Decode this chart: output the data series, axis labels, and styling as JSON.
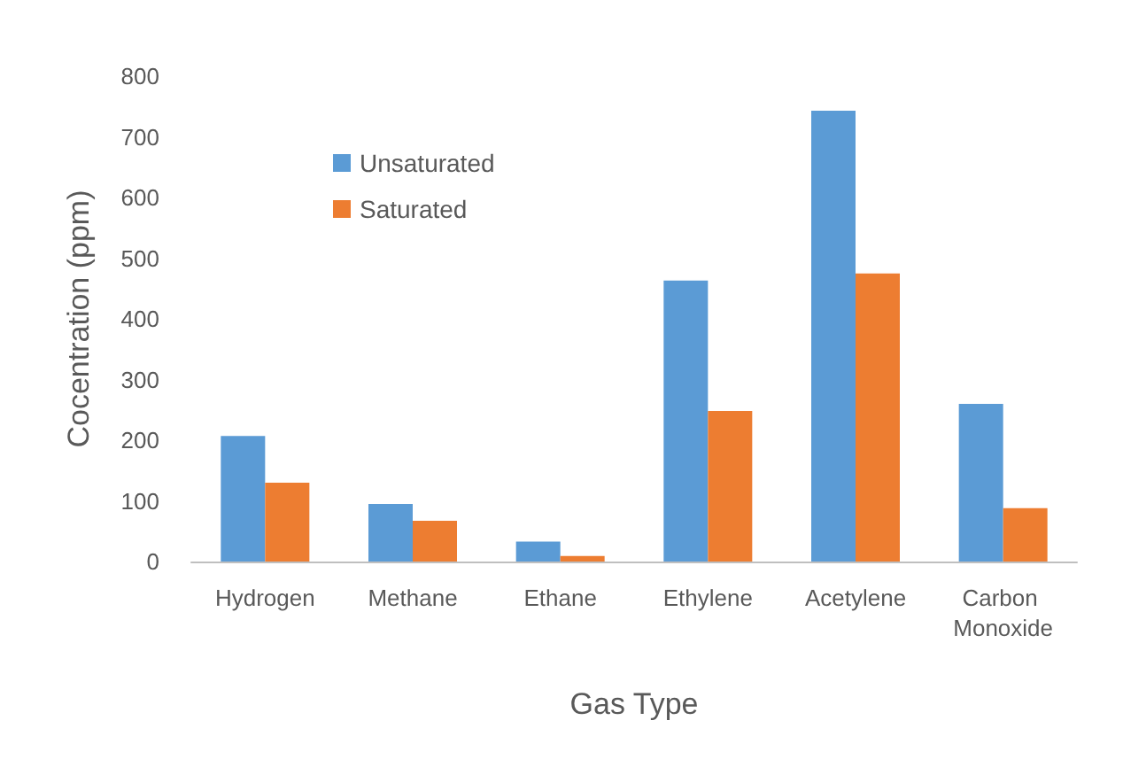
{
  "chart_data": {
    "type": "bar",
    "xlabel": "Gas Type",
    "ylabel": "Cocentration (ppm)",
    "categories": [
      "Hydrogen",
      "Methane",
      "Ethane",
      "Ethylene",
      "Acetylene",
      "Carbon Monoxide"
    ],
    "series": [
      {
        "name": "Unsaturated",
        "color": "#5b9bd5",
        "values": [
          207,
          95,
          33,
          463,
          743,
          260
        ]
      },
      {
        "name": "Saturated",
        "color": "#ed7d31",
        "values": [
          130,
          67,
          9,
          248,
          475,
          88
        ]
      }
    ],
    "ylim": [
      0,
      800
    ],
    "yticks": [
      0,
      100,
      200,
      300,
      400,
      500,
      600,
      700,
      800
    ],
    "grid": false,
    "legend": "top left"
  }
}
